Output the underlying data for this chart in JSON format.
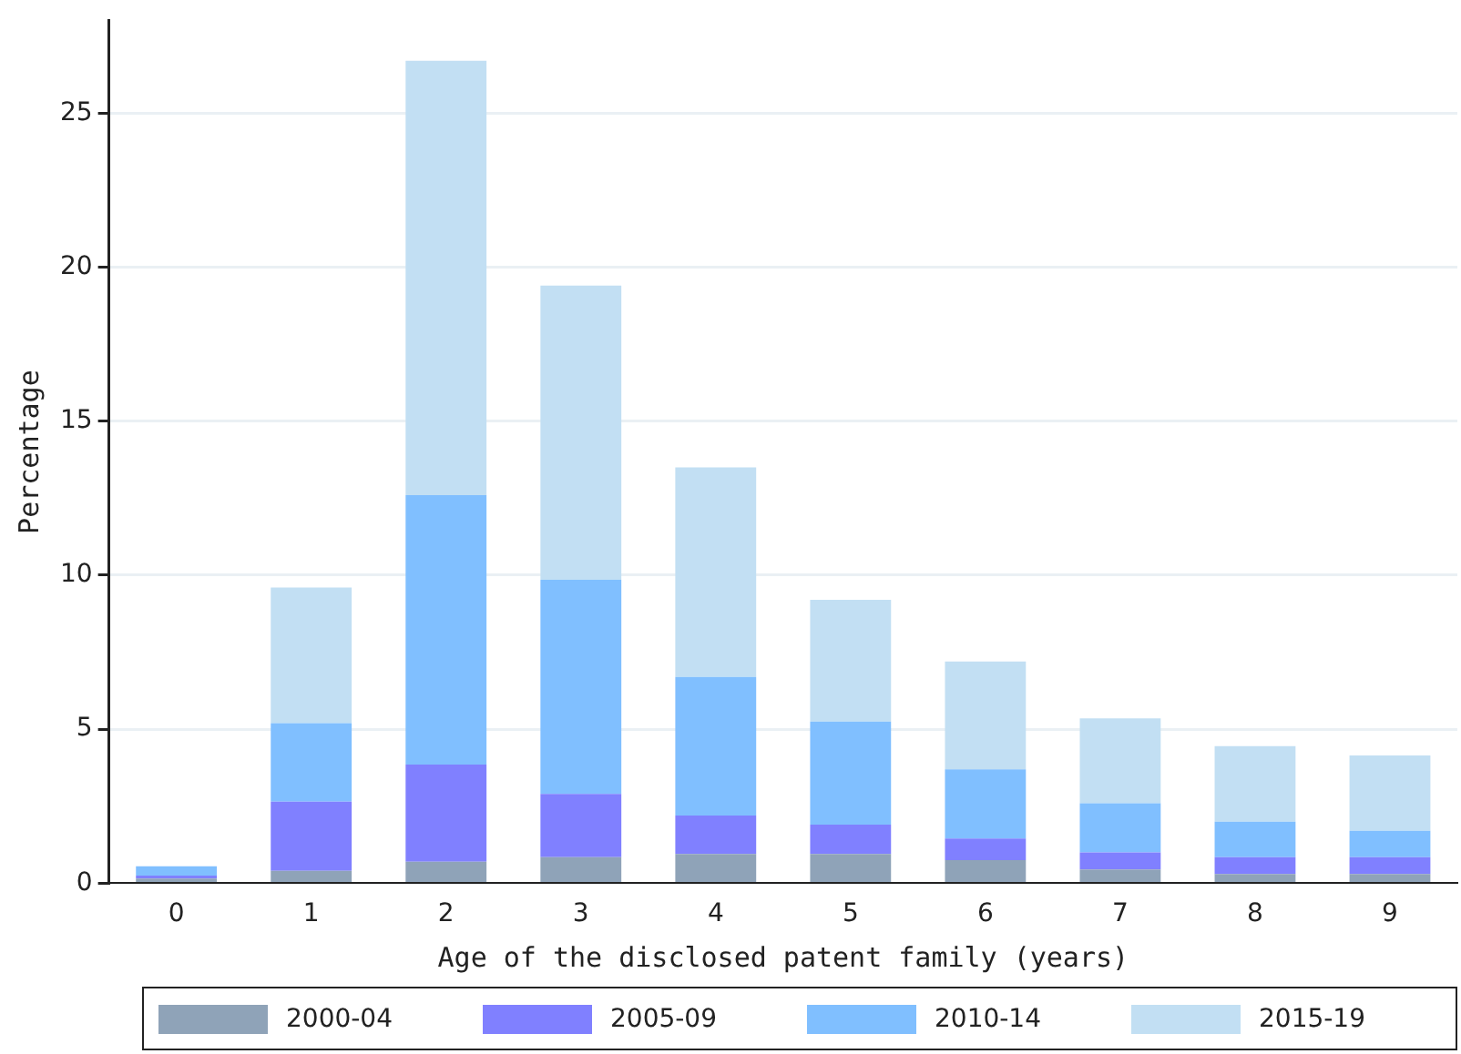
{
  "chart_data": {
    "type": "bar",
    "stacked": true,
    "xlabel": "Age of the disclosed patent family (years)",
    "ylabel": "Percentage",
    "categories": [
      "0",
      "1",
      "2",
      "3",
      "4",
      "5",
      "6",
      "7",
      "8",
      "9"
    ],
    "series": [
      {
        "name": "2000-04",
        "color": "#8fa3b8",
        "values": [
          0.15,
          0.4,
          0.7,
          0.85,
          0.95,
          0.95,
          0.75,
          0.45,
          0.3,
          0.3
        ]
      },
      {
        "name": "2005-09",
        "color": "#8080ff",
        "values": [
          0.1,
          2.25,
          3.15,
          2.05,
          1.25,
          0.95,
          0.7,
          0.55,
          0.55,
          0.55
        ]
      },
      {
        "name": "2010-14",
        "color": "#80bfff",
        "values": [
          0.3,
          2.55,
          8.75,
          6.95,
          4.5,
          3.35,
          2.25,
          1.6,
          1.15,
          0.85
        ]
      },
      {
        "name": "2015-19",
        "color": "#c2dff3",
        "values": [
          0,
          4.4,
          14.1,
          9.55,
          6.8,
          3.95,
          3.5,
          2.75,
          2.45,
          2.45
        ]
      }
    ],
    "ylim": [
      0,
      28
    ],
    "yticks": [
      0,
      5,
      10,
      15,
      20,
      25
    ],
    "grid": "y",
    "legend": "bottom"
  }
}
